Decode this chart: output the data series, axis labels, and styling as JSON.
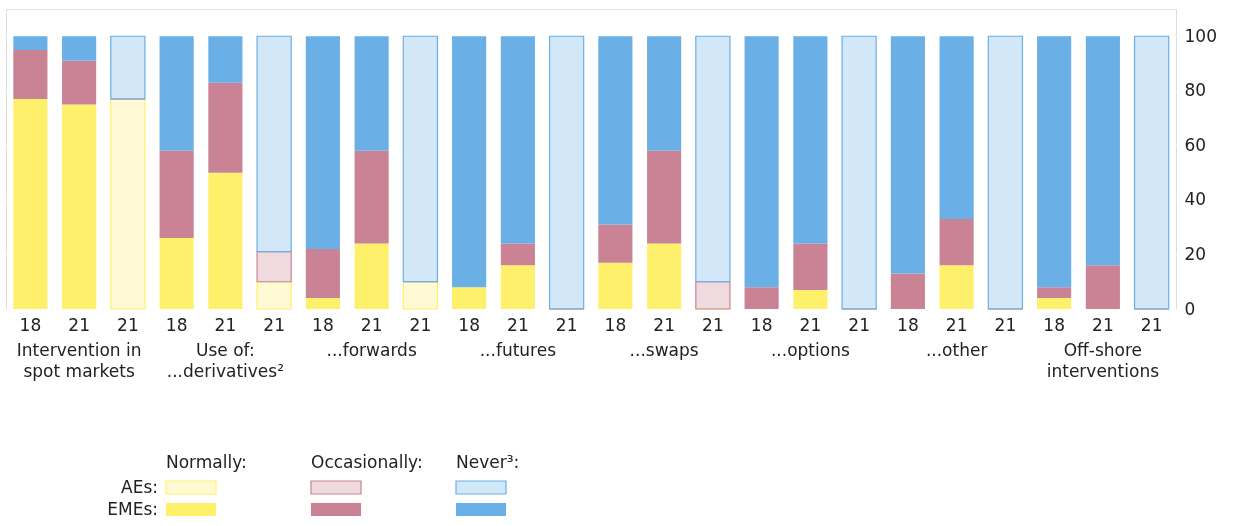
{
  "chart_data": {
    "type": "bar",
    "stacked": true,
    "categories": [
      "18",
      "21",
      "21",
      "18",
      "21",
      "21",
      "18",
      "21",
      "21",
      "18",
      "21",
      "21",
      "18",
      "21",
      "21",
      "18",
      "21",
      "21",
      "18",
      "21",
      "21",
      "18",
      "21",
      "21"
    ],
    "series": [
      {
        "color": "#fff06c",
        "values": [
          77,
          75,
          null,
          26,
          50,
          null,
          4,
          24,
          null,
          8,
          16,
          null,
          17,
          24,
          null,
          0,
          7,
          null,
          0,
          16,
          null,
          4,
          0,
          null
        ]
      },
      {
        "color": "#c98394",
        "values": [
          18,
          16,
          null,
          32,
          33,
          null,
          18,
          34,
          null,
          0,
          8,
          null,
          14,
          34,
          null,
          8,
          17,
          null,
          13,
          17,
          null,
          4,
          16,
          null
        ]
      },
      {
        "color": "#6aafe6",
        "values": [
          5,
          9,
          null,
          42,
          17,
          null,
          78,
          42,
          null,
          92,
          76,
          null,
          69,
          42,
          null,
          92,
          76,
          null,
          87,
          67,
          null,
          92,
          84,
          null
        ]
      },
      {
        "color": "#fff06c",
        "values": [
          null,
          null,
          77,
          null,
          null,
          10,
          null,
          null,
          10,
          null,
          null,
          0,
          null,
          null,
          0,
          null,
          null,
          0,
          null,
          null,
          0,
          null,
          null,
          0
        ]
      },
      {
        "color": "#c98394",
        "values": [
          null,
          null,
          0,
          null,
          null,
          11,
          null,
          null,
          0,
          null,
          null,
          0,
          null,
          null,
          10,
          null,
          null,
          0,
          null,
          null,
          0,
          null,
          null,
          0
        ]
      },
      {
        "color": "#6aafe6",
        "values": [
          null,
          null,
          23,
          null,
          null,
          79,
          null,
          null,
          90,
          null,
          null,
          100,
          null,
          null,
          90,
          null,
          null,
          100,
          null,
          null,
          100,
          null,
          null,
          100
        ]
      }
    ],
    "ylim": [
      0,
      110
    ],
    "yticks": [
      0,
      20,
      40,
      60,
      80,
      100
    ],
    "grid": "y",
    "annotations": [
      "Intervention in\nspot markets",
      "Use of:\n...derivatives²",
      "...forwards",
      "...futures",
      "...swaps",
      "...options",
      "...other",
      "Off-shore\ninterventions",
      "Normally:",
      "Occasionally:",
      "Never³:",
      "AEs:",
      "EMEs:"
    ]
  }
}
